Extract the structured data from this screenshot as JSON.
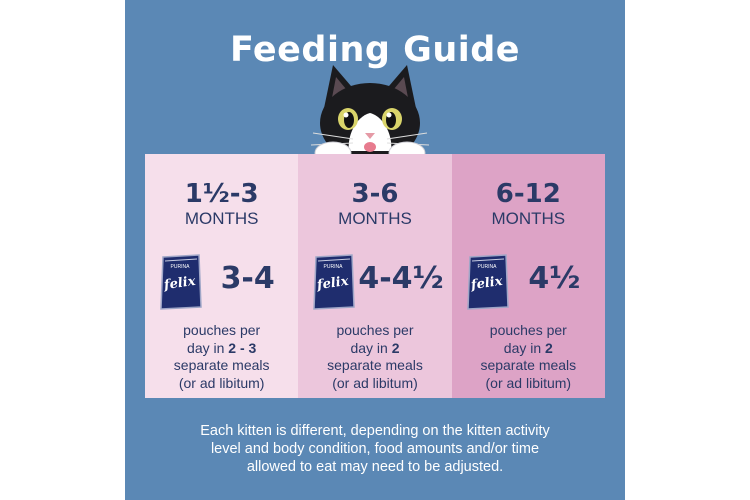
{
  "title": "Feeding Guide",
  "colors": {
    "panel": "#5b88b5",
    "col1": "#f6dfeb",
    "col2": "#ecc6dc",
    "col3": "#dda3c6",
    "text": "#2b3a67"
  },
  "icons": {
    "cat": "cat-peeking-icon",
    "pouch": "felix-pouch-icon"
  },
  "columns": [
    {
      "age": "1½-3",
      "unit": "MONTHS",
      "pouch_brand": "felix",
      "pouch_maker": "PURINA",
      "amount": "3-4",
      "desc_line1": "pouches per",
      "desc_line2_prefix": "day in ",
      "desc_line2_bold": "2 - 3",
      "desc_line3": "separate meals",
      "desc_line4": "(or ad libitum)"
    },
    {
      "age": "3-6",
      "unit": "MONTHS",
      "pouch_brand": "felix",
      "pouch_maker": "PURINA",
      "amount": "4-4½",
      "desc_line1": "pouches per",
      "desc_line2_prefix": "day in ",
      "desc_line2_bold": "2",
      "desc_line3": "separate meals",
      "desc_line4": "(or ad libitum)"
    },
    {
      "age": "6-12",
      "unit": "MONTHS",
      "pouch_brand": "felix",
      "pouch_maker": "PURINA",
      "amount": "4½",
      "desc_line1": "pouches per",
      "desc_line2_prefix": "day in ",
      "desc_line2_bold": "2",
      "desc_line3": "separate meals",
      "desc_line4": "(or ad libitum)"
    }
  ],
  "note": {
    "line1": "Each kitten is different, depending on the kitten activity",
    "line2": "level and body condition, food amounts and/or time",
    "line3": "allowed to eat may need to be adjusted."
  }
}
